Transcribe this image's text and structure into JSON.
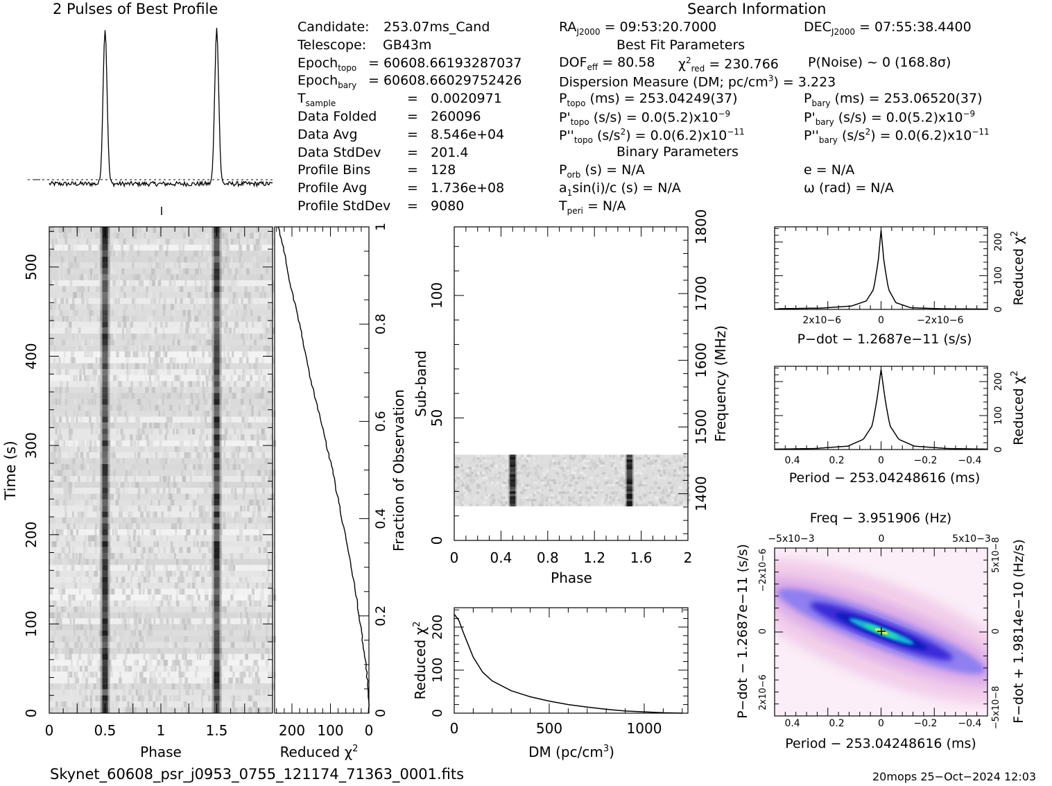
{
  "titles": {
    "profile": "2 Pulses of Best Profile",
    "search": "Search Information",
    "best_fit": "Best Fit Parameters",
    "binary": "Binary Parameters"
  },
  "info_left": [
    {
      "label": "Candidate:",
      "value": "253.07ms_Cand"
    },
    {
      "label": "Telescope:",
      "value": "GB43m"
    },
    {
      "label": "Epoch",
      "sub": "topo",
      "value": "= 60608.66193287037"
    },
    {
      "label": "Epoch",
      "sub": "bary",
      "value": "= 60608.66029752426"
    },
    {
      "label": "T",
      "sub": "sample",
      "value": "=   0.0020971"
    },
    {
      "label": "Data Folded",
      "value": "=   260096"
    },
    {
      "label": "Data Avg",
      "value": "=   8.546e+04"
    },
    {
      "label": "Data StdDev",
      "value": "=   201.4"
    },
    {
      "label": "Profile Bins",
      "value": "=   128"
    },
    {
      "label": "Profile Avg",
      "value": "=   1.736e+08"
    },
    {
      "label": "Profile StdDev",
      "value": "=   9080"
    }
  ],
  "info_mid": {
    "ra": {
      "label": "RA",
      "sub": "J2000",
      "value": "= 09:53:20.7000"
    },
    "dec": {
      "label": "DEC",
      "sub": "J2000",
      "value": "= 07:55:38.4400"
    },
    "dof": {
      "label": "DOF",
      "sub": "eff",
      "value": "= 80.58"
    },
    "chi": {
      "label": "χ",
      "sup": "2",
      "sub": "red",
      "value": "= 230.766"
    },
    "pnoise": "P(Noise) ~ 0    (168.8σ)",
    "dm": "Dispersion Measure (DM; pc/cm",
    "dm_sup": "3",
    "dm_val": ") = 3.223",
    "ptopo": {
      "label": "P",
      "sub": "topo",
      "value": "(ms) =  253.04249(37)"
    },
    "pbary": {
      "label": "P",
      "sub": "bary",
      "value": "(ms) =  253.06520(37)"
    },
    "pdtopo": {
      "label": "P'",
      "sub": "topo",
      "value": "(s/s) = 0.0(5.2)x10",
      "sup": "−9"
    },
    "pdbary": {
      "label": "P'",
      "sub": "bary",
      "value": "(s/s) = 0.0(5.2)x10",
      "sup": "−9"
    },
    "pddtopo": {
      "label": "P''",
      "sub": "topo",
      "value": "(s/s",
      "sup2": "2",
      "value2": ") = 0.0(6.2)x10",
      "sup": "−11"
    },
    "pddbary": {
      "label": "P''",
      "sub": "bary",
      "value": "(s/s",
      "sup2": "2",
      "value2": ") = 0.0(6.2)x10",
      "sup": "−11"
    },
    "porb": {
      "label": "P",
      "sub": "orb",
      "value": "(s) = N/A"
    },
    "e": "e = N/A",
    "a1": {
      "label": "a",
      "sub": "1",
      "value": "sin(i)/c (s) = N/A"
    },
    "omega": "ω (rad) = N/A",
    "tperi": {
      "label": "T",
      "sub": "peri",
      "value": "= N/A"
    }
  },
  "axes": {
    "time": "Time (s)",
    "phase": "Phase",
    "reduced_chi": "Reduced χ",
    "reduced_chi_sup": "2",
    "fraction": "Fraction of Observation",
    "subband": "Sub-band",
    "frequency": "Frequency (MHz)",
    "dm_label": "DM (pc/cm",
    "dm_label_sup": "3",
    "dm_label_end": ")",
    "pdot": "P−dot − 1.2687e−11 (s/s)",
    "period": "Period − 253.04248616 (ms)",
    "freq_top": "Freq − 3.951906 (Hz)",
    "fdot": "F−dot + 1.9814e−10 (Hz/s)"
  },
  "footer": {
    "filename": "Skynet_60608_psr_j0953_0755_121174_71363_0001.fits",
    "stamp": "20mops 25−Oct−2024 12:03"
  },
  "chart_data": [
    {
      "type": "line",
      "name_hint": "profile",
      "title": "2 Pulses of Best Profile",
      "x": [
        0,
        0.2,
        0.4,
        0.45,
        0.48,
        0.5,
        0.52,
        0.55,
        0.6,
        0.8,
        1.0,
        1.2,
        1.4,
        1.45,
        1.48,
        1.5,
        1.52,
        1.55,
        1.6,
        1.8,
        2.0
      ],
      "y": [
        0.02,
        0.01,
        0.02,
        0.1,
        0.6,
        1.0,
        0.6,
        0.1,
        0.02,
        0.01,
        0.02,
        0.01,
        0.02,
        0.1,
        0.6,
        1.0,
        0.6,
        0.1,
        0.02,
        0.01,
        0.02
      ]
    },
    {
      "type": "heatmap",
      "name_hint": "time-phase",
      "xlabel": "Phase",
      "ylabel": "Time (s)",
      "xlim": [
        0,
        2
      ],
      "ylim": [
        0,
        545
      ],
      "xticks": [
        "0",
        "0.5",
        "1",
        "1.5"
      ],
      "yticks": [
        "0",
        "100",
        "200",
        "300",
        "400",
        "500"
      ],
      "pulse_phase": [
        0.5,
        1.5
      ]
    },
    {
      "type": "line",
      "name_hint": "reduced-chi-time",
      "xlabel": "Reduced χ2",
      "xticks": [
        "200",
        "100",
        "0"
      ],
      "yticks": [
        "0.2",
        "0.4",
        "0.6",
        "0.8",
        "1"
      ],
      "fraction": [
        0,
        0.05,
        0.1,
        0.2,
        0.3,
        0.4,
        0.5,
        0.6,
        0.7,
        0.8,
        0.9,
        0.95,
        1.0
      ],
      "chi": [
        0,
        2,
        8,
        25,
        45,
        70,
        95,
        125,
        155,
        180,
        210,
        220,
        235
      ]
    },
    {
      "type": "heatmap",
      "name_hint": "subband-phase",
      "xlabel": "Phase",
      "ylabel": "Sub-band",
      "y2label": "Frequency (MHz)",
      "xticks": [
        "0",
        "0.4",
        "0.8",
        "1.2",
        "1.6",
        "2"
      ],
      "yticks": [
        "0",
        "50",
        "100"
      ],
      "y2ticks": [
        "1400",
        "1500",
        "1600",
        "1700",
        "1800"
      ],
      "band_subbands": [
        14,
        35
      ],
      "pulse_phase": [
        0.5,
        1.5
      ]
    },
    {
      "type": "line",
      "name_hint": "dm-chi",
      "xlabel": "DM (pc/cm3)",
      "ylabel": "Reduced χ2",
      "xticks": [
        "0",
        "500",
        "1000"
      ],
      "yticks": [
        "0",
        "100",
        "200"
      ],
      "x": [
        0,
        25,
        50,
        100,
        150,
        200,
        300,
        400,
        500,
        600,
        700,
        800,
        900,
        1000,
        1100,
        1200
      ],
      "y": [
        230,
        215,
        185,
        130,
        95,
        75,
        52,
        38,
        28,
        20,
        14,
        9,
        5,
        3,
        1,
        0
      ]
    },
    {
      "type": "line",
      "name_hint": "pdot-chi",
      "xlabel": "P−dot − 1.2687e−11 (s/s)",
      "ylabel": "Reduced χ2",
      "xticks": [
        "2x10−6",
        "0",
        "−2x10−6"
      ],
      "yticks": [
        "0",
        "100",
        "200"
      ],
      "x": [
        3.5,
        2.0,
        1.0,
        0.5,
        0.25,
        0.1,
        0,
        -0.1,
        -0.25,
        -0.5,
        -1.0,
        -2.0,
        -3.5
      ],
      "y": [
        2,
        4,
        10,
        25,
        60,
        140,
        235,
        140,
        60,
        20,
        5,
        2,
        1
      ]
    },
    {
      "type": "line",
      "name_hint": "period-chi",
      "xlabel": "Period − 253.04248616 (ms)",
      "ylabel": "Reduced χ2",
      "xticks": [
        "0.4",
        "0.2",
        "0",
        "−0.2",
        "−0.4"
      ],
      "yticks": [
        "0",
        "100",
        "200"
      ],
      "x": [
        0.5,
        0.3,
        0.15,
        0.08,
        0.04,
        0.02,
        0,
        -0.02,
        -0.04,
        -0.08,
        -0.15,
        -0.3,
        -0.5
      ],
      "y": [
        1,
        3,
        10,
        30,
        70,
        140,
        235,
        140,
        70,
        30,
        10,
        3,
        1
      ]
    },
    {
      "type": "heatmap",
      "name_hint": "period-pdot",
      "xlabel": "Period − 253.04248616 (ms)",
      "ylabel": "P−dot − 1.2687e−11 (s/s)",
      "x2label": "Freq − 3.951906 (Hz)",
      "y2label": "F−dot + 1.9814e−10 (Hz/s)",
      "xticks": [
        "0.4",
        "0.2",
        "0",
        "−0.2",
        "−0.4"
      ],
      "x2ticks": [
        "−5x10−3",
        "0",
        "5x10−3"
      ],
      "yticks": [
        "2x10−6",
        "0",
        "−2x10−6"
      ],
      "y2ticks": [
        "−5x10−8",
        "0",
        "5x10−8"
      ]
    }
  ]
}
